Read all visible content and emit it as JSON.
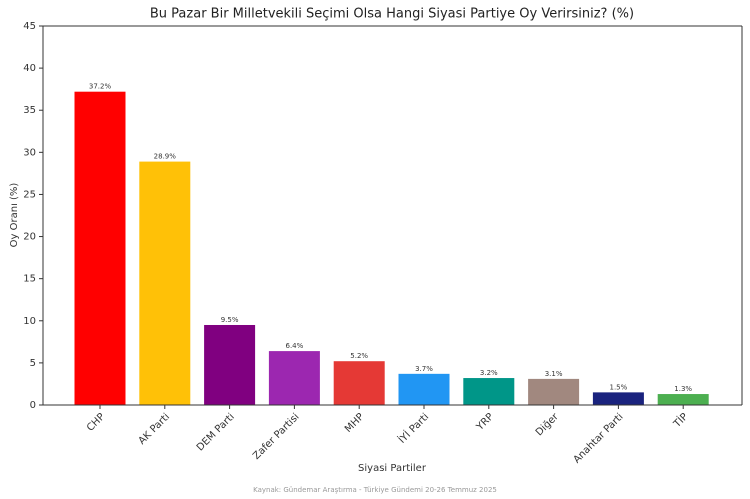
{
  "chart_data": {
    "type": "bar",
    "title": "Bu Pazar Bir Milletvekili Seçimi Olsa Hangi Siyasi Partiye Oy Verirsiniz? (%)",
    "x_label": "Siyasi Partiler",
    "y_label": "Oy Oranı (%)",
    "source": "Kaynak: Gündemar Araştırma - Türkiye Gündemi 20-26 Temmuz 2025",
    "categories": [
      "CHP",
      "AK Parti",
      "DEM Parti",
      "Zafer Partisi",
      "MHP",
      "İYİ Parti",
      "YRP",
      "Diğer",
      "Anahtar Parti",
      "TİP"
    ],
    "values": [
      37.2,
      28.9,
      9.5,
      6.4,
      5.2,
      3.7,
      3.2,
      3.1,
      1.5,
      1.3
    ],
    "value_labels": [
      "37.2%",
      "28.9%",
      "9.5%",
      "6.4%",
      "5.2%",
      "3.7%",
      "3.2%",
      "3.1%",
      "1.5%",
      "1.3%"
    ],
    "colors": [
      "#ff0000",
      "#ffc107",
      "#800080",
      "#9c27b0",
      "#e53935",
      "#2196f3",
      "#009688",
      "#a1887f",
      "#1a237e",
      "#4caf50"
    ],
    "ylim": [
      0,
      45
    ],
    "yticks": [
      0,
      5,
      10,
      15,
      20,
      25,
      30,
      35,
      40,
      45
    ]
  }
}
